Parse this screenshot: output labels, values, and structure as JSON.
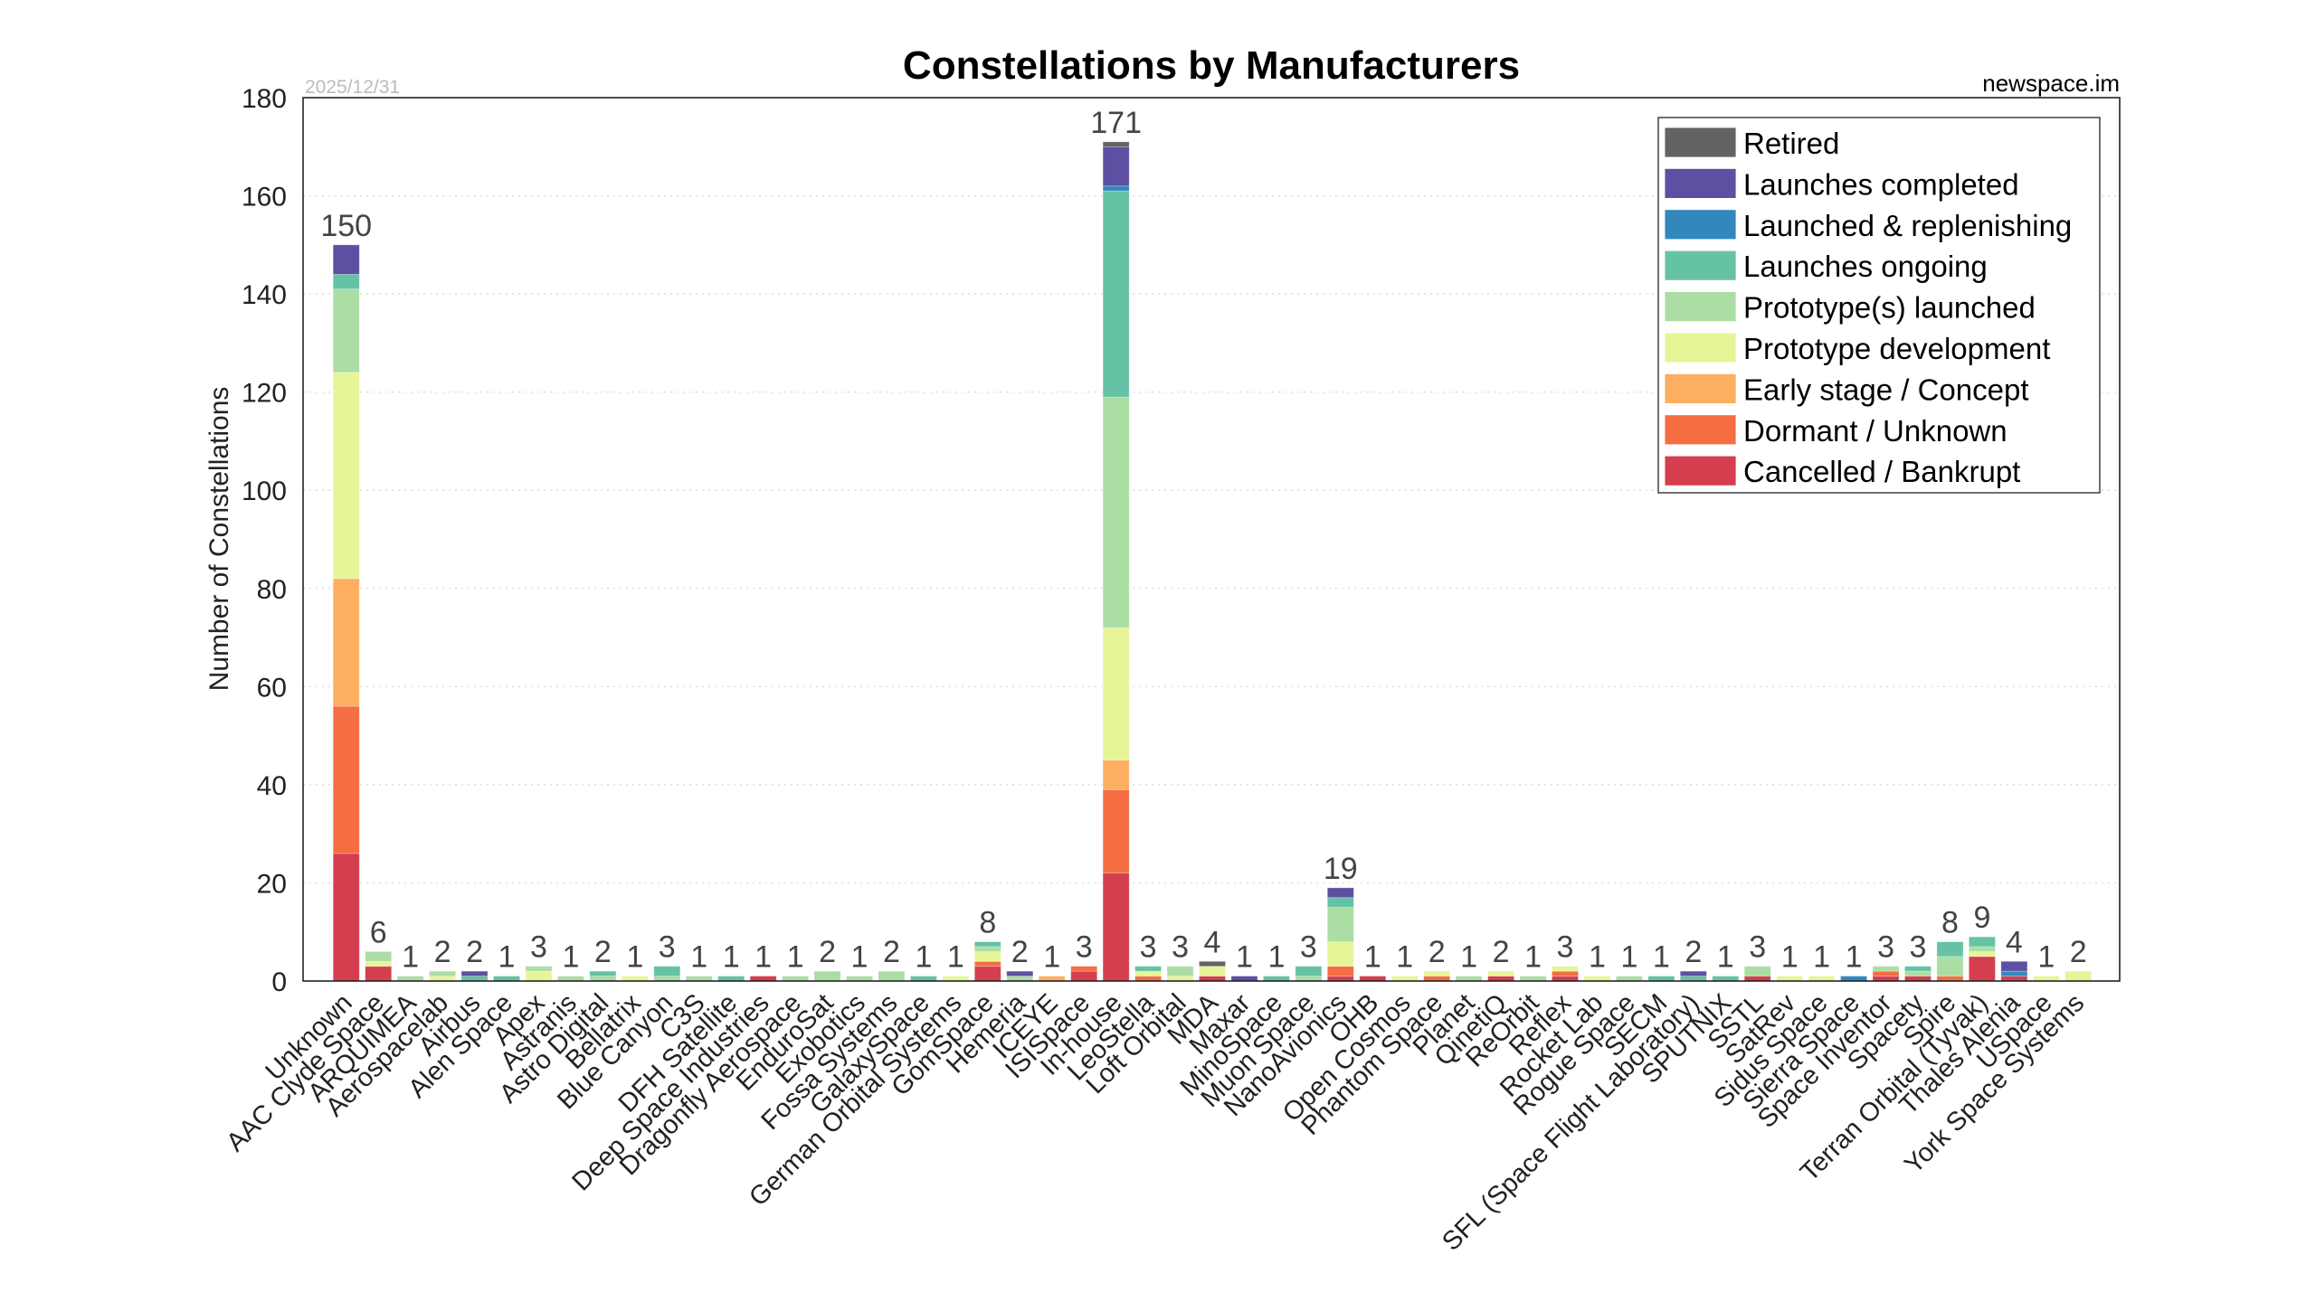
{
  "chart_data": {
    "type": "bar",
    "stacked": true,
    "title": "Constellations by Manufacturers",
    "date": "2025/12/31",
    "source": "newspace.im",
    "xlabel": "",
    "ylabel": "Number of Constellations",
    "ylim": [
      0,
      180
    ],
    "yticks": [
      0,
      20,
      40,
      60,
      80,
      100,
      120,
      140,
      160,
      180
    ],
    "grid": true,
    "legend_position": "top-right",
    "categories": [
      "Unknown",
      "AAC Clyde Space",
      "ARQUIMEA",
      "Aerospacelab",
      "Airbus",
      "Alen Space",
      "Apex",
      "Astranis",
      "Astro Digital",
      "Bellatrix",
      "Blue Canyon",
      "C3S",
      "DFH Satellite",
      "Deep Space Industries",
      "Dragonfly Aerospace",
      "EnduroSat",
      "Exobotics",
      "Fossa Systems",
      "GalaxySpace",
      "German Orbital Systems",
      "GomSpace",
      "Hemeria",
      "ICEYE",
      "ISISpace",
      "In-house",
      "LeoStella",
      "Loft Orbital",
      "MDA",
      "Maxar",
      "MinoSpace",
      "Muon Space",
      "NanoAvionics",
      "OHB",
      "Open Cosmos",
      "Phantom Space",
      "Planet",
      "QinetiQ",
      "ReOrbit",
      "Reflex",
      "Rocket Lab",
      "Rogue Space",
      "SECM",
      "SFL (Space Flight Laboratory)",
      "SPUTNIX",
      "SSTL",
      "SatRev",
      "Sidus Space",
      "Sierra Space",
      "Space Inventor",
      "Spacety",
      "Spire",
      "Terran Orbital (Tyvak)",
      "Thales Alenia",
      "USpace",
      "York Space Systems"
    ],
    "totals": [
      150,
      6,
      1,
      2,
      2,
      1,
      3,
      1,
      2,
      1,
      3,
      1,
      1,
      1,
      1,
      2,
      1,
      2,
      1,
      1,
      8,
      2,
      1,
      3,
      171,
      3,
      3,
      4,
      1,
      1,
      3,
      19,
      1,
      1,
      2,
      1,
      2,
      1,
      3,
      1,
      1,
      1,
      2,
      1,
      3,
      1,
      1,
      1,
      3,
      3,
      8,
      9,
      4,
      1,
      2
    ],
    "series": [
      {
        "name": "Cancelled / Bankrupt",
        "color": "#d53e4f",
        "values": [
          26,
          3,
          0,
          0,
          0,
          0,
          0,
          0,
          0,
          0,
          0,
          0,
          0,
          1,
          0,
          0,
          0,
          0,
          0,
          0,
          3,
          0,
          0,
          2,
          22,
          0,
          0,
          1,
          0,
          0,
          0,
          1,
          1,
          0,
          0,
          0,
          1,
          0,
          1,
          0,
          0,
          0,
          0,
          0,
          1,
          0,
          0,
          0,
          1,
          1,
          0,
          5,
          1,
          0,
          0
        ]
      },
      {
        "name": "Dormant / Unknown",
        "color": "#f46d43",
        "values": [
          30,
          0,
          0,
          0,
          0,
          0,
          0,
          0,
          0,
          0,
          0,
          0,
          0,
          0,
          0,
          0,
          0,
          0,
          0,
          0,
          1,
          0,
          0,
          1,
          17,
          1,
          0,
          0,
          0,
          0,
          0,
          2,
          0,
          0,
          1,
          0,
          0,
          0,
          1,
          0,
          0,
          0,
          0,
          0,
          0,
          0,
          0,
          0,
          1,
          0,
          1,
          0,
          0,
          0,
          0
        ]
      },
      {
        "name": "Early stage / Concept",
        "color": "#fdae61",
        "values": [
          26,
          0,
          0,
          0,
          0,
          0,
          0,
          0,
          0,
          0,
          0,
          0,
          0,
          0,
          0,
          0,
          0,
          0,
          0,
          0,
          0,
          0,
          1,
          0,
          6,
          0,
          0,
          0,
          0,
          0,
          0,
          0,
          0,
          0,
          0,
          0,
          0,
          0,
          0,
          0,
          0,
          0,
          0,
          0,
          0,
          0,
          0,
          0,
          0,
          0,
          0,
          0,
          0,
          0,
          0
        ]
      },
      {
        "name": "Prototype development",
        "color": "#e6f598",
        "values": [
          42,
          1,
          0,
          1,
          0,
          0,
          2,
          0,
          0,
          1,
          0,
          0,
          0,
          0,
          0,
          0,
          0,
          0,
          0,
          1,
          2,
          0,
          0,
          0,
          27,
          1,
          1,
          2,
          0,
          0,
          0,
          5,
          0,
          1,
          1,
          0,
          1,
          0,
          1,
          1,
          0,
          0,
          0,
          0,
          0,
          1,
          1,
          0,
          0,
          0,
          0,
          1,
          0,
          1,
          2
        ]
      },
      {
        "name": "Prototype(s) launched",
        "color": "#abdda4",
        "values": [
          17,
          2,
          1,
          1,
          0,
          0,
          1,
          1,
          1,
          0,
          1,
          1,
          0,
          0,
          1,
          2,
          1,
          2,
          0,
          0,
          1,
          1,
          0,
          0,
          47,
          0,
          2,
          0,
          0,
          0,
          1,
          7,
          0,
          0,
          0,
          1,
          0,
          1,
          0,
          0,
          1,
          0,
          0,
          0,
          2,
          0,
          0,
          0,
          1,
          1,
          4,
          1,
          0,
          0,
          0
        ]
      },
      {
        "name": "Launches ongoing",
        "color": "#66c2a5",
        "values": [
          3,
          0,
          0,
          0,
          1,
          1,
          0,
          0,
          1,
          0,
          2,
          0,
          1,
          0,
          0,
          0,
          0,
          0,
          1,
          0,
          1,
          0,
          0,
          0,
          42,
          1,
          0,
          0,
          0,
          1,
          2,
          2,
          0,
          0,
          0,
          0,
          0,
          0,
          0,
          0,
          0,
          1,
          1,
          1,
          0,
          0,
          0,
          0,
          0,
          1,
          3,
          2,
          0,
          0,
          0
        ]
      },
      {
        "name": "Launched & replenishing",
        "color": "#3288bd",
        "values": [
          0,
          0,
          0,
          0,
          0,
          0,
          0,
          0,
          0,
          0,
          0,
          0,
          0,
          0,
          0,
          0,
          0,
          0,
          0,
          0,
          0,
          0,
          0,
          0,
          1,
          0,
          0,
          0,
          0,
          0,
          0,
          0,
          0,
          0,
          0,
          0,
          0,
          0,
          0,
          0,
          0,
          0,
          0,
          0,
          0,
          0,
          0,
          1,
          0,
          0,
          0,
          0,
          1,
          0,
          0
        ]
      },
      {
        "name": "Launches completed",
        "color": "#5e4fa2",
        "values": [
          6,
          0,
          0,
          0,
          1,
          0,
          0,
          0,
          0,
          0,
          0,
          0,
          0,
          0,
          0,
          0,
          0,
          0,
          0,
          0,
          0,
          1,
          0,
          0,
          8,
          0,
          0,
          0,
          1,
          0,
          0,
          2,
          0,
          0,
          0,
          0,
          0,
          0,
          0,
          0,
          0,
          0,
          1,
          0,
          0,
          0,
          0,
          0,
          0,
          0,
          0,
          0,
          2,
          0,
          0
        ]
      },
      {
        "name": "Retired",
        "color": "#636363",
        "values": [
          0,
          0,
          0,
          0,
          0,
          0,
          0,
          0,
          0,
          0,
          0,
          0,
          0,
          0,
          0,
          0,
          0,
          0,
          0,
          0,
          0,
          0,
          0,
          0,
          1,
          0,
          0,
          1,
          0,
          0,
          0,
          0,
          0,
          0,
          0,
          0,
          0,
          0,
          0,
          0,
          0,
          0,
          0,
          0,
          0,
          0,
          0,
          0,
          0,
          0,
          0,
          0,
          0,
          0,
          0
        ]
      }
    ],
    "legend_order": [
      "Retired",
      "Launches completed",
      "Launched & replenishing",
      "Launches ongoing",
      "Prototype(s) launched",
      "Prototype development",
      "Early stage / Concept",
      "Dormant / Unknown",
      "Cancelled / Bankrupt"
    ]
  }
}
